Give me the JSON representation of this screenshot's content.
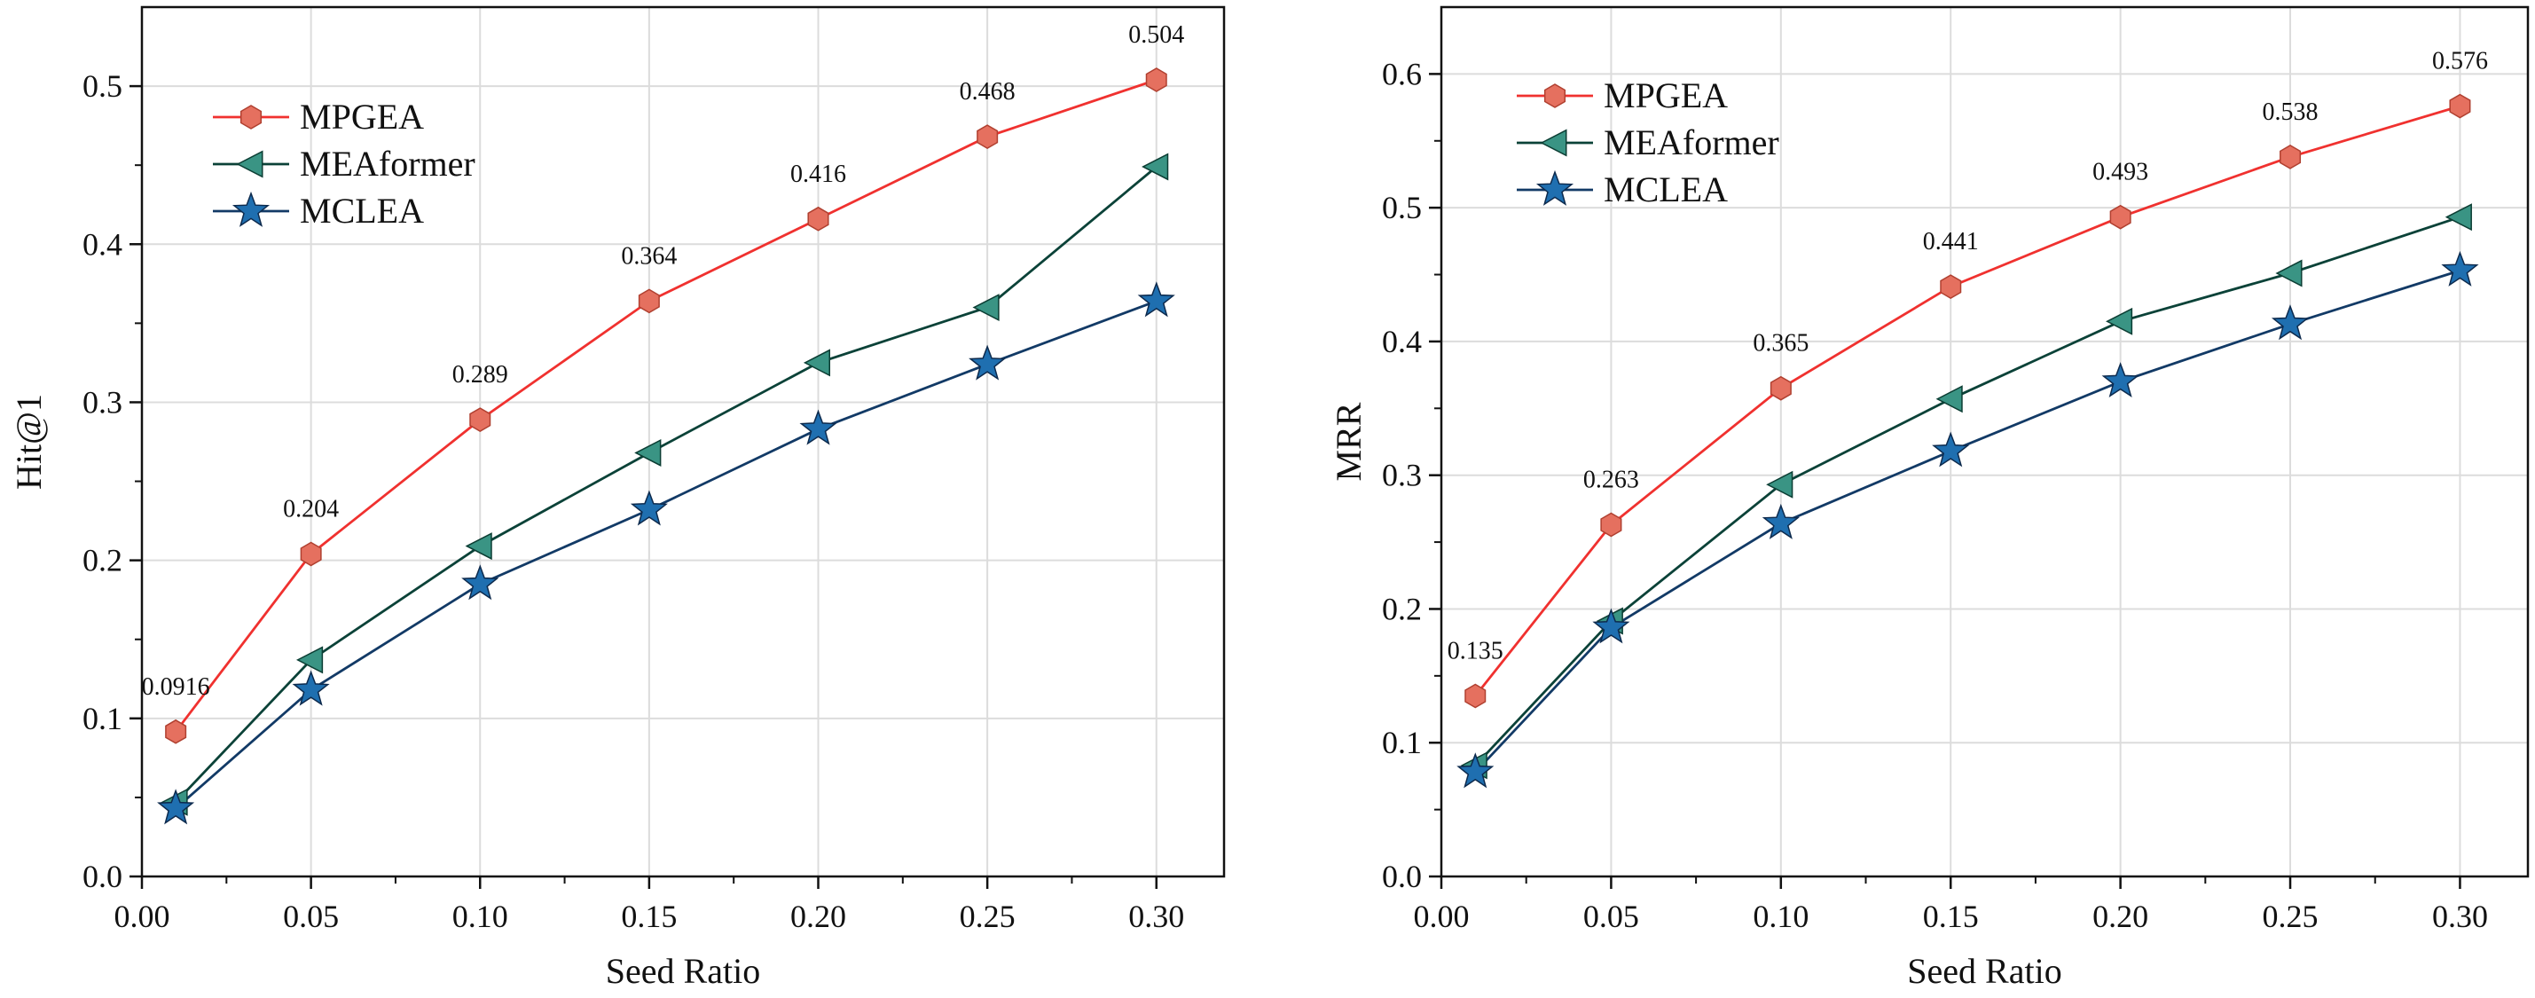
{
  "chart_data": [
    {
      "type": "line",
      "title": "",
      "xlabel": "Seed Ratio",
      "ylabel": "Hit@1",
      "xlim": [
        0.0,
        0.32
      ],
      "ylim": [
        0.0,
        0.55
      ],
      "xticks": [
        0.0,
        0.05,
        0.1,
        0.15,
        0.2,
        0.25,
        0.3
      ],
      "xtick_labels": [
        "0.00",
        "0.05",
        "0.10",
        "0.15",
        "0.20",
        "0.25",
        "0.30"
      ],
      "yticks": [
        0.0,
        0.1,
        0.2,
        0.3,
        0.4,
        0.5
      ],
      "ytick_labels": [
        "0.0",
        "0.1",
        "0.2",
        "0.3",
        "0.4",
        "0.5"
      ],
      "grid": true,
      "legend_position": "top-left",
      "x": [
        0.01,
        0.05,
        0.1,
        0.15,
        0.2,
        0.25,
        0.3
      ],
      "series": [
        {
          "name": "MPGEA",
          "values": [
            0.0916,
            0.204,
            0.289,
            0.364,
            0.416,
            0.468,
            0.504
          ],
          "color": "#f0312f",
          "marker_color": "#e5705f",
          "marker": "hexagon",
          "labels": [
            "0.0916",
            "0.204",
            "0.289",
            "0.364",
            "0.416",
            "0.468",
            "0.504"
          ]
        },
        {
          "name": "MEAformer",
          "values": [
            0.047,
            0.137,
            0.209,
            0.268,
            0.325,
            0.36,
            0.449
          ],
          "color": "#0b4238",
          "marker_color": "#3a9484",
          "marker": "triangle-left"
        },
        {
          "name": "MCLEA",
          "values": [
            0.043,
            0.118,
            0.185,
            0.232,
            0.283,
            0.324,
            0.364
          ],
          "color": "#123a66",
          "marker_color": "#1f6fb0",
          "marker": "star"
        }
      ]
    },
    {
      "type": "line",
      "title": "",
      "xlabel": "Seed Ratio",
      "ylabel": "MRR",
      "xlim": [
        0.0,
        0.32
      ],
      "ylim": [
        0.0,
        0.65
      ],
      "xticks": [
        0.0,
        0.05,
        0.1,
        0.15,
        0.2,
        0.25,
        0.3
      ],
      "xtick_labels": [
        "0.00",
        "0.05",
        "0.10",
        "0.15",
        "0.20",
        "0.25",
        "0.30"
      ],
      "yticks": [
        0.0,
        0.1,
        0.2,
        0.3,
        0.4,
        0.5,
        0.6
      ],
      "ytick_labels": [
        "0.0",
        "0.1",
        "0.2",
        "0.3",
        "0.4",
        "0.5",
        "0.6"
      ],
      "grid": true,
      "legend_position": "top-left",
      "x": [
        0.01,
        0.05,
        0.1,
        0.15,
        0.2,
        0.25,
        0.3
      ],
      "series": [
        {
          "name": "MPGEA",
          "values": [
            0.135,
            0.263,
            0.365,
            0.441,
            0.493,
            0.538,
            0.576
          ],
          "color": "#f0312f",
          "marker_color": "#e5705f",
          "marker": "hexagon",
          "labels": [
            "0.135",
            "0.263",
            "0.365",
            "0.441",
            "0.493",
            "0.538",
            "0.576"
          ]
        },
        {
          "name": "MEAformer",
          "values": [
            0.083,
            0.191,
            0.293,
            0.357,
            0.415,
            0.451,
            0.493
          ],
          "color": "#0b4238",
          "marker_color": "#3a9484",
          "marker": "triangle-left"
        },
        {
          "name": "MCLEA",
          "values": [
            0.078,
            0.186,
            0.264,
            0.318,
            0.37,
            0.413,
            0.453
          ],
          "color": "#123a66",
          "marker_color": "#1f6fb0",
          "marker": "star"
        }
      ]
    }
  ]
}
